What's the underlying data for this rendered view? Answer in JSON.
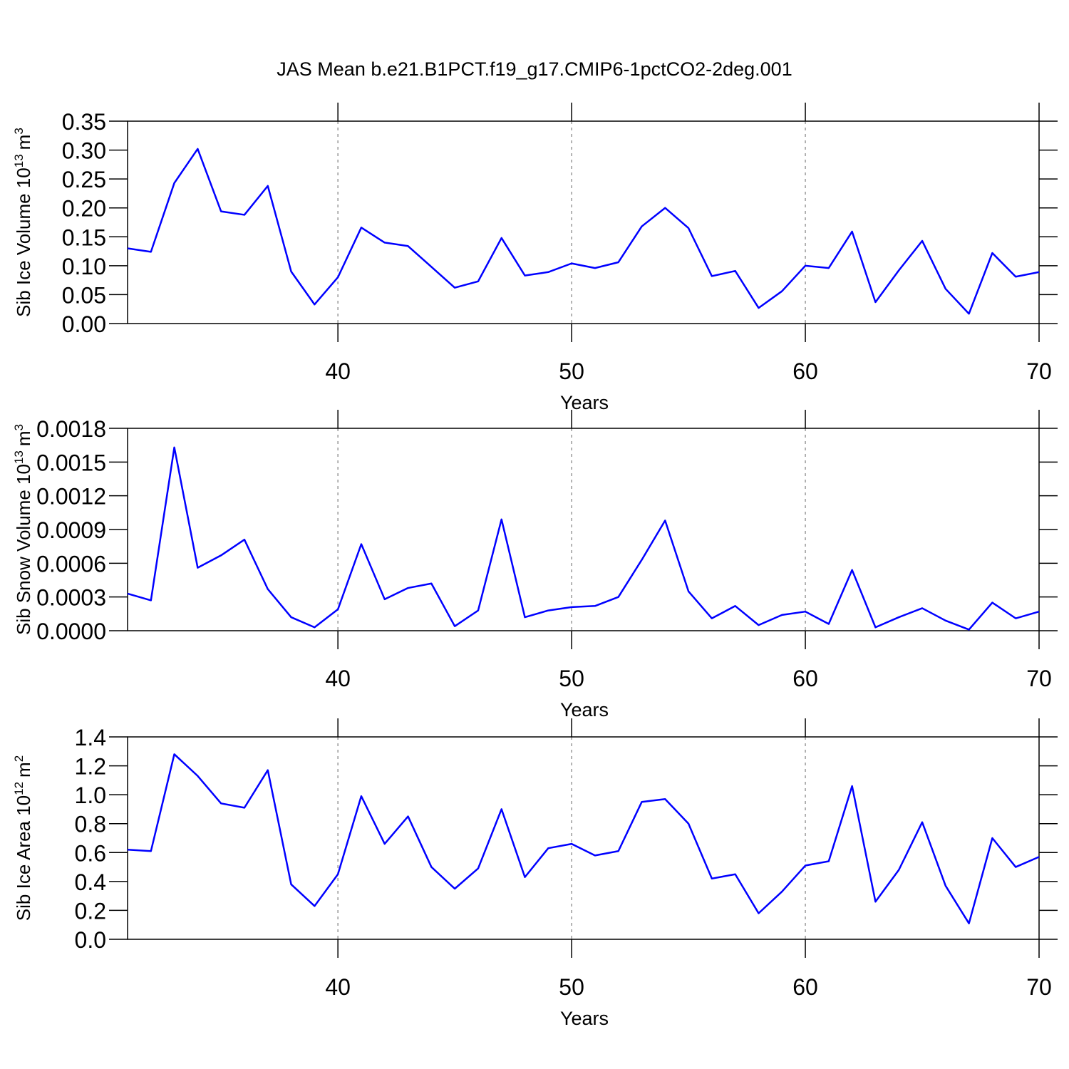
{
  "title": "JAS Mean b.e21.B1PCT.f19_g17.CMIP6-1pctCO2-2deg.001",
  "chart_data": [
    {
      "type": "line",
      "xlabel": "Years",
      "ylabel": "Sib Ice Volume 10",
      "ylabel_exp": "13",
      "ylabel_unit": "m",
      "ylabel_unit_exp": "3",
      "color": "#0000ff",
      "xgrid": true,
      "xlim": [
        31,
        70
      ],
      "xticks": [
        40,
        50,
        60,
        70
      ],
      "ylim": [
        0,
        0.35
      ],
      "yticks": [
        {
          "value": 0,
          "label": "0.00"
        },
        {
          "value": 0.05,
          "label": "0.05"
        },
        {
          "value": 0.1,
          "label": "0.10"
        },
        {
          "value": 0.15,
          "label": "0.15"
        },
        {
          "value": 0.2,
          "label": "0.20"
        },
        {
          "value": 0.25,
          "label": "0.25"
        },
        {
          "value": 0.3,
          "label": "0.30"
        },
        0.35
      ],
      "x": [
        31,
        32,
        33,
        34,
        35,
        36,
        37,
        38,
        39,
        40,
        41,
        42,
        43,
        44,
        45,
        46,
        47,
        48,
        49,
        50,
        51,
        52,
        53,
        54,
        55,
        56,
        57,
        58,
        59,
        60,
        61,
        62,
        63,
        64,
        65,
        66,
        67,
        68,
        69,
        70
      ],
      "values": [
        0.13,
        0.124,
        0.243,
        0.302,
        0.194,
        0.188,
        0.238,
        0.09,
        0.033,
        0.08,
        0.166,
        0.14,
        0.134,
        0.098,
        0.062,
        0.073,
        0.148,
        0.083,
        0.089,
        0.104,
        0.096,
        0.106,
        0.168,
        0.2,
        0.165,
        0.082,
        0.091,
        0.027,
        0.056,
        0.1,
        0.096,
        0.159,
        0.037,
        0.092,
        0.143,
        0.06,
        0.017,
        0.122,
        0.081,
        0.089
      ]
    },
    {
      "type": "line",
      "xlabel": "Years",
      "ylabel": "Sib Snow Volume 10",
      "ylabel_exp": "13",
      "ylabel_unit": "m",
      "ylabel_unit_exp": "3",
      "color": "#0000ff",
      "xgrid": true,
      "xlim": [
        31,
        70
      ],
      "xticks": [
        40,
        50,
        60,
        70
      ],
      "ylim": [
        0,
        0.0018
      ],
      "yticks": [
        {
          "value": 0,
          "label": "0.0000"
        },
        {
          "value": 0.0003,
          "label": "0.0003"
        },
        {
          "value": 0.0006,
          "label": "0.0006"
        },
        {
          "value": 0.0009,
          "label": "0.0009"
        },
        {
          "value": 0.0012,
          "label": "0.0012"
        },
        {
          "value": 0.0015,
          "label": "0.0015"
        },
        0.0018
      ],
      "x": [
        31,
        32,
        33,
        34,
        35,
        36,
        37,
        38,
        39,
        40,
        41,
        42,
        43,
        44,
        45,
        46,
        47,
        48,
        49,
        50,
        51,
        52,
        53,
        54,
        55,
        56,
        57,
        58,
        59,
        60,
        61,
        62,
        63,
        64,
        65,
        66,
        67,
        68,
        69,
        70
      ],
      "values": [
        0.00033,
        0.00027,
        0.00163,
        0.00056,
        0.00067,
        0.00081,
        0.00037,
        0.00012,
        3e-05,
        0.00019,
        0.00077,
        0.00028,
        0.00038,
        0.00042,
        4e-05,
        0.00018,
        0.00099,
        0.00012,
        0.00018,
        0.00021,
        0.00022,
        0.0003,
        0.00063,
        0.00098,
        0.00035,
        0.00011,
        0.00022,
        5e-05,
        0.00014,
        0.00017,
        6e-05,
        0.00054,
        3e-05,
        0.00012,
        0.0002,
        9e-05,
        1e-05,
        0.00025,
        0.00011,
        0.00017
      ]
    },
    {
      "type": "line",
      "xlabel": "Years",
      "ylabel": "Sib Ice Area 10",
      "ylabel_exp": "12",
      "ylabel_unit": "m",
      "ylabel_unit_exp": "2",
      "color": "#0000ff",
      "xgrid": true,
      "xlim": [
        31,
        70
      ],
      "xticks": [
        40,
        50,
        60,
        70
      ],
      "ylim": [
        0,
        1.4
      ],
      "yticks": [
        {
          "value": 0,
          "label": "0.0"
        },
        0.2,
        0.4,
        0.6,
        0.8,
        {
          "value": 1,
          "label": "1.0"
        },
        1.2,
        1.4
      ],
      "x": [
        31,
        32,
        33,
        34,
        35,
        36,
        37,
        38,
        39,
        40,
        41,
        42,
        43,
        44,
        45,
        46,
        47,
        48,
        49,
        50,
        51,
        52,
        53,
        54,
        55,
        56,
        57,
        58,
        59,
        60,
        61,
        62,
        63,
        64,
        65,
        66,
        67,
        68,
        69,
        70
      ],
      "values": [
        0.62,
        0.61,
        1.28,
        1.13,
        0.94,
        0.91,
        1.17,
        0.38,
        0.23,
        0.45,
        0.99,
        0.66,
        0.85,
        0.5,
        0.35,
        0.49,
        0.9,
        0.43,
        0.63,
        0.66,
        0.58,
        0.61,
        0.95,
        0.97,
        0.8,
        0.42,
        0.45,
        0.18,
        0.33,
        0.51,
        0.54,
        1.06,
        0.26,
        0.48,
        0.81,
        0.37,
        0.11,
        0.7,
        0.5,
        0.57
      ]
    }
  ]
}
